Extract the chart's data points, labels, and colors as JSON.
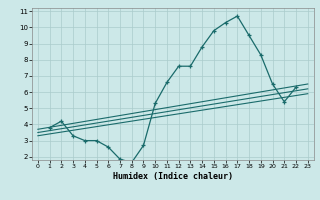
{
  "xlabel": "Humidex (Indice chaleur)",
  "ylabel": "",
  "bg_color": "#cce8e8",
  "grid_color": "#aacccc",
  "line_color": "#1a6b6b",
  "xlim": [
    -0.5,
    23.5
  ],
  "ylim": [
    1.8,
    11.2
  ],
  "xticks": [
    0,
    1,
    2,
    3,
    4,
    5,
    6,
    7,
    8,
    9,
    10,
    11,
    12,
    13,
    14,
    15,
    16,
    17,
    18,
    19,
    20,
    21,
    22,
    23
  ],
  "yticks": [
    2,
    3,
    4,
    5,
    6,
    7,
    8,
    9,
    10,
    11
  ],
  "curve1_x": [
    1,
    2,
    3,
    4,
    5,
    6,
    7,
    8,
    9,
    10,
    11,
    12,
    13,
    14,
    15,
    16,
    17,
    18,
    19,
    20,
    21,
    22
  ],
  "curve1_y": [
    3.8,
    4.2,
    3.3,
    3.0,
    3.0,
    2.6,
    1.85,
    1.65,
    2.7,
    5.3,
    6.6,
    7.6,
    7.6,
    8.8,
    9.8,
    10.3,
    10.7,
    9.5,
    8.3,
    6.5,
    5.4,
    6.3
  ],
  "curve2_x": [
    0,
    23
  ],
  "curve2_y": [
    3.7,
    6.5
  ],
  "curve3_x": [
    0,
    23
  ],
  "curve3_y": [
    3.5,
    6.2
  ],
  "curve4_x": [
    0,
    23
  ],
  "curve4_y": [
    3.3,
    5.9
  ]
}
